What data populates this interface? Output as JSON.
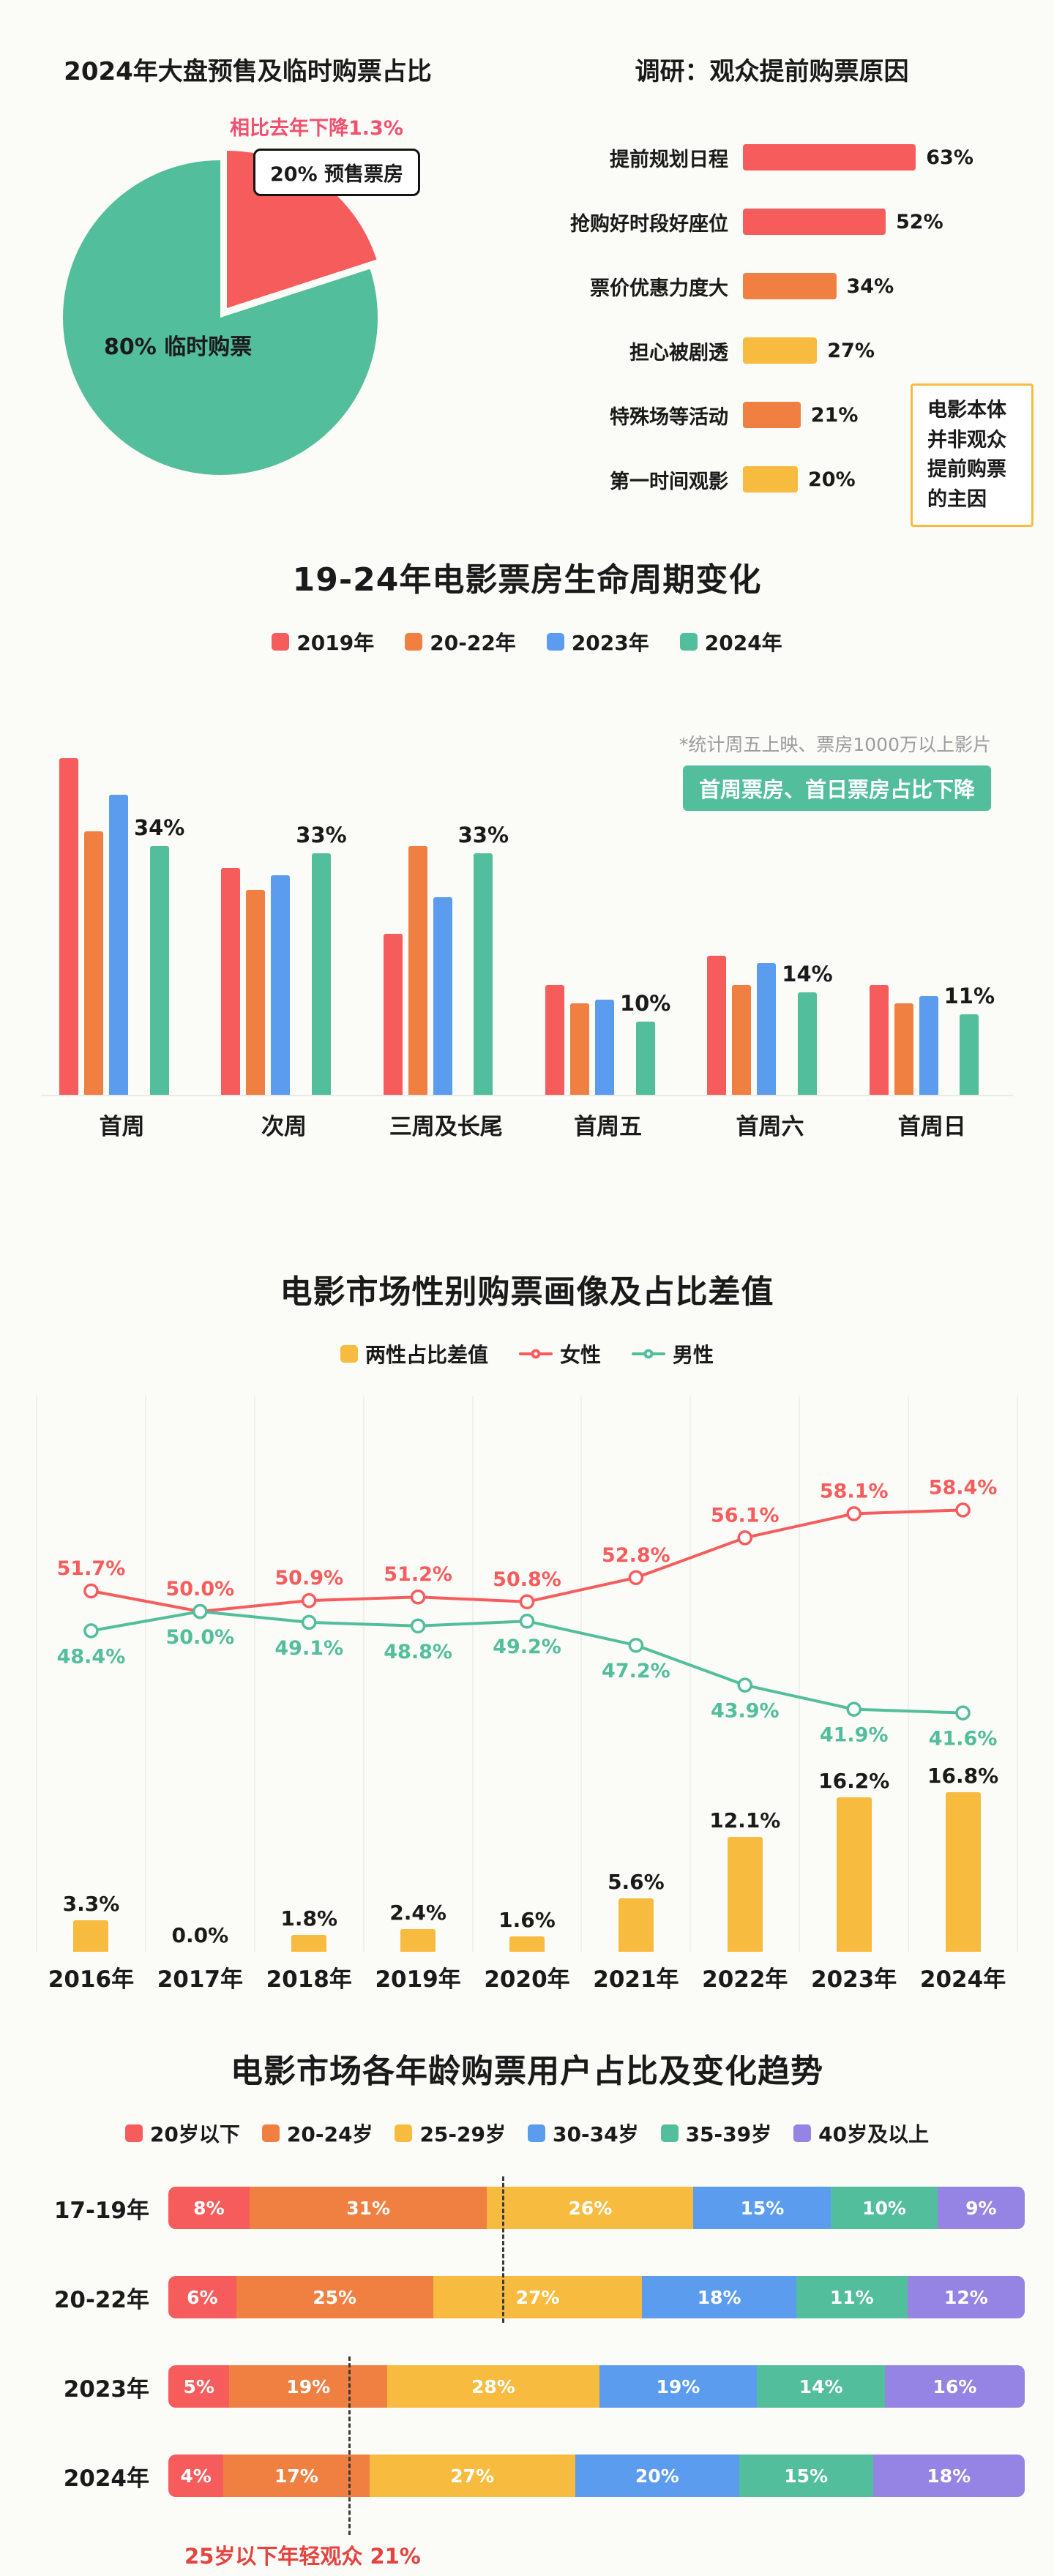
{
  "chart_data": [
    {
      "id": "presale-pie",
      "type": "pie",
      "title": "2024年大盘预售及临时购票占比",
      "annotation": "相比去年下降1.3%",
      "slices": [
        {
          "label": "20% 预售票房",
          "value": 20,
          "color": "#F75C5C"
        },
        {
          "label": "80% 临时购票",
          "value": 80,
          "color": "#52BE9C"
        }
      ]
    },
    {
      "id": "survey-reasons",
      "type": "bar",
      "title": "调研：观众提前购票原因",
      "categories": [
        "提前规划日程",
        "抢购好时段好座位",
        "票价优惠力度大",
        "担心被剧透",
        "特殊场等活动",
        "第一时间观影"
      ],
      "values": [
        63,
        52,
        34,
        27,
        21,
        20
      ],
      "bar_colors": [
        "#F75C5C",
        "#F75C5C",
        "#F08041",
        "#F7BC3F",
        "#F08041",
        "#F7BC3F"
      ],
      "note": "电影本体并非观众提前购票的主因",
      "xlim": [
        0,
        70
      ]
    },
    {
      "id": "lifecycle",
      "type": "bar",
      "title": "19-24年电影票房生命周期变化",
      "categories": [
        "首周",
        "次周",
        "三周及长尾",
        "首周五",
        "首周六",
        "首周日"
      ],
      "series": [
        {
          "name": "2019年",
          "color": "#F75C5C",
          "values": [
            46,
            31,
            22,
            15,
            19,
            15
          ]
        },
        {
          "name": "20-22年",
          "color": "#F08041",
          "values": [
            36,
            28,
            34,
            12.5,
            15,
            12.5
          ]
        },
        {
          "name": "2023年",
          "color": "#5C9CEF",
          "values": [
            41,
            30,
            27,
            13,
            18,
            13.5
          ]
        },
        {
          "name": "2024年",
          "color": "#52BE9C",
          "values": [
            34,
            33,
            33,
            10,
            14,
            11
          ]
        }
      ],
      "labels_2024": [
        "34%",
        "33%",
        "33%",
        "10%",
        "14%",
        "11%"
      ],
      "footnote": "*统计周五上映、票房1000万以上影片",
      "highlight": "首周票房、首日票房占比下降",
      "ylim": [
        0,
        50
      ]
    },
    {
      "id": "gender",
      "type": "line",
      "title": "电影市场性别购票画像及占比差值",
      "categories": [
        "2016年",
        "2017年",
        "2018年",
        "2019年",
        "2020年",
        "2021年",
        "2022年",
        "2023年",
        "2024年"
      ],
      "series": [
        {
          "name": "两性占比差值",
          "type": "bar",
          "color": "#F7BC3F",
          "values": [
            3.3,
            0.0,
            1.8,
            2.4,
            1.6,
            5.6,
            12.1,
            16.2,
            16.8
          ]
        },
        {
          "name": "女性",
          "type": "line",
          "color": "#F75C5C",
          "values": [
            51.7,
            50.0,
            50.9,
            51.2,
            50.8,
            52.8,
            56.1,
            58.1,
            58.4
          ]
        },
        {
          "name": "男性",
          "type": "line",
          "color": "#52BE9C",
          "values": [
            48.4,
            50.0,
            49.1,
            48.8,
            49.2,
            47.2,
            43.9,
            41.9,
            41.6
          ]
        }
      ],
      "grid": true,
      "legend_position": "top"
    },
    {
      "id": "age",
      "type": "bar",
      "stacked": true,
      "title": "电影市场各年龄购票用户占比及变化趋势",
      "rows": [
        "17-19年",
        "20-22年",
        "2023年",
        "2024年"
      ],
      "segments": [
        "20岁以下",
        "20-24岁",
        "25-29岁",
        "30-34岁",
        "35-39岁",
        "40岁及以上"
      ],
      "segment_colors": [
        "#F75C5C",
        "#F08041",
        "#F7BC3F",
        "#5C9CEF",
        "#52BE9C",
        "#9584E4"
      ],
      "values": [
        [
          8,
          31,
          26,
          15,
          10,
          9
        ],
        [
          6,
          25,
          27,
          18,
          11,
          12
        ],
        [
          5,
          19,
          28,
          19,
          14,
          16
        ],
        [
          4,
          17,
          27,
          20,
          15,
          18
        ]
      ],
      "annotation": "25岁以下年轻观众 21%"
    }
  ]
}
